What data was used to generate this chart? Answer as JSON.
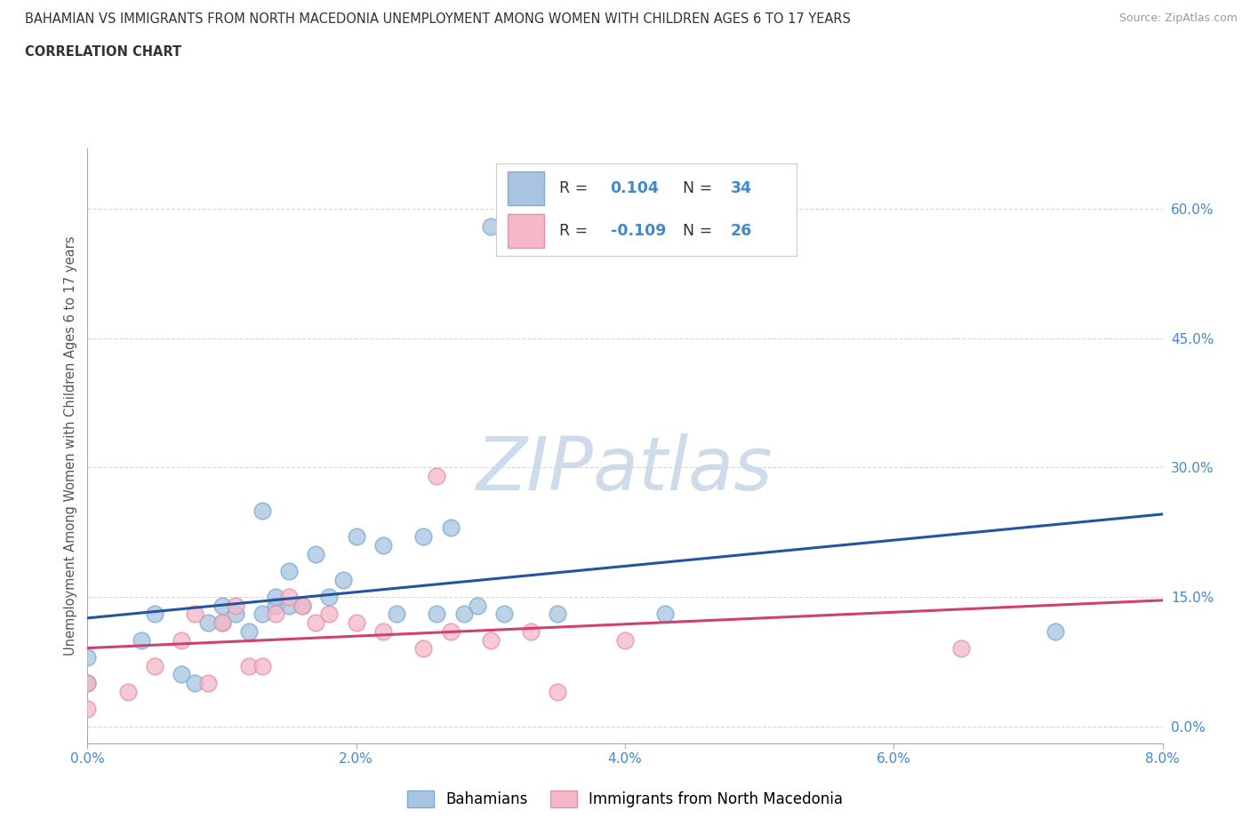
{
  "title_line1": "BAHAMIAN VS IMMIGRANTS FROM NORTH MACEDONIA UNEMPLOYMENT AMONG WOMEN WITH CHILDREN AGES 6 TO 17 YEARS",
  "title_line2": "CORRELATION CHART",
  "source_text": "Source: ZipAtlas.com",
  "ylabel": "Unemployment Among Women with Children Ages 6 to 17 years",
  "xlim": [
    0.0,
    0.08
  ],
  "ylim": [
    -0.02,
    0.67
  ],
  "xticks": [
    0.0,
    0.02,
    0.04,
    0.06,
    0.08
  ],
  "xtick_labels": [
    "0.0%",
    "2.0%",
    "4.0%",
    "6.0%",
    "8.0%"
  ],
  "yticks": [
    0.0,
    0.15,
    0.3,
    0.45,
    0.6
  ],
  "ytick_labels": [
    "0.0%",
    "15.0%",
    "30.0%",
    "45.0%",
    "60.0%"
  ],
  "r_bahamian": 0.104,
  "n_bahamian": 34,
  "r_macedonia": -0.109,
  "n_macedonia": 26,
  "bahamian_color": "#a8c4e0",
  "macedonia_color": "#f4b8c8",
  "bahamian_edge_color": "#7aadd4",
  "macedonia_edge_color": "#e890a8",
  "bahamian_trend_color": "#2255a0",
  "macedonia_trend_color": "#d04070",
  "watermark": "ZIPatlas",
  "bahamian_x": [
    0.0,
    0.0,
    0.004,
    0.005,
    0.007,
    0.008,
    0.009,
    0.01,
    0.01,
    0.011,
    0.012,
    0.013,
    0.013,
    0.014,
    0.014,
    0.015,
    0.015,
    0.016,
    0.017,
    0.018,
    0.019,
    0.02,
    0.022,
    0.023,
    0.025,
    0.026,
    0.027,
    0.028,
    0.029,
    0.03,
    0.031,
    0.035,
    0.043,
    0.072
  ],
  "bahamian_y": [
    0.05,
    0.08,
    0.1,
    0.13,
    0.06,
    0.05,
    0.12,
    0.12,
    0.14,
    0.13,
    0.11,
    0.25,
    0.13,
    0.14,
    0.15,
    0.18,
    0.14,
    0.14,
    0.2,
    0.15,
    0.17,
    0.22,
    0.21,
    0.13,
    0.22,
    0.13,
    0.23,
    0.13,
    0.14,
    0.58,
    0.13,
    0.13,
    0.13,
    0.11
  ],
  "macedonia_x": [
    0.0,
    0.0,
    0.003,
    0.005,
    0.007,
    0.008,
    0.009,
    0.01,
    0.011,
    0.012,
    0.013,
    0.014,
    0.015,
    0.016,
    0.017,
    0.018,
    0.02,
    0.022,
    0.025,
    0.026,
    0.027,
    0.03,
    0.033,
    0.035,
    0.04,
    0.065
  ],
  "macedonia_y": [
    0.02,
    0.05,
    0.04,
    0.07,
    0.1,
    0.13,
    0.05,
    0.12,
    0.14,
    0.07,
    0.07,
    0.13,
    0.15,
    0.14,
    0.12,
    0.13,
    0.12,
    0.11,
    0.09,
    0.29,
    0.11,
    0.1,
    0.11,
    0.04,
    0.1,
    0.09
  ],
  "background_color": "#ffffff",
  "grid_color": "#cccccc",
  "title_color": "#333333",
  "axis_label_color": "#555555",
  "tick_label_color": "#4488cc",
  "watermark_color": "#c8d8e8",
  "legend_box_color": "#f0f4f8"
}
